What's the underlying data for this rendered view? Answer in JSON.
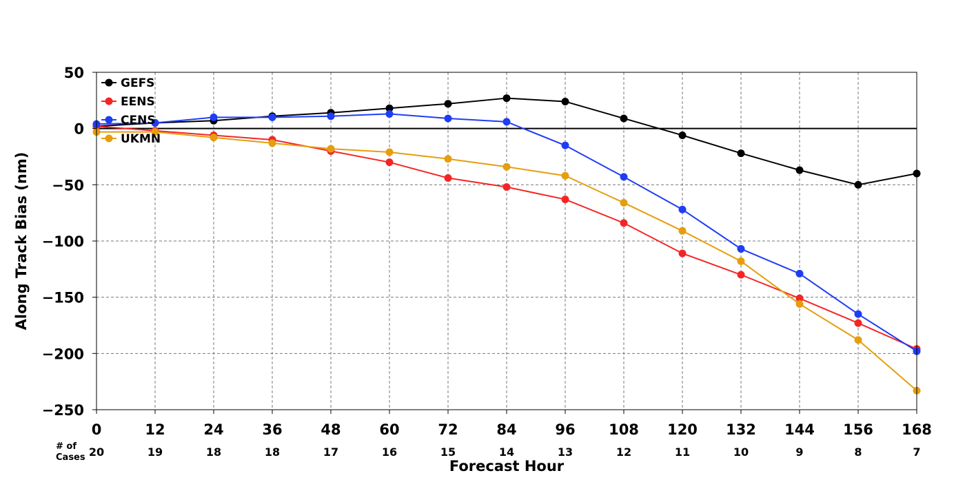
{
  "chart_data": {
    "type": "line",
    "title": "",
    "xlabel": "Forecast Hour",
    "ylabel": "Along Track Bias (nm)",
    "x": [
      0,
      12,
      24,
      36,
      48,
      60,
      72,
      84,
      96,
      108,
      120,
      132,
      144,
      156,
      168
    ],
    "xlim": [
      0,
      168
    ],
    "ylim": [
      -250,
      50
    ],
    "yticks": [
      50,
      0,
      -50,
      -100,
      -150,
      -200,
      -250
    ],
    "ytick_labels": [
      "50",
      "0",
      "−50",
      "−100",
      "−150",
      "−200",
      "−250"
    ],
    "xtick_labels": [
      "0",
      "12",
      "24",
      "36",
      "48",
      "60",
      "72",
      "84",
      "96",
      "108",
      "120",
      "132",
      "144",
      "156",
      "168"
    ],
    "grid": true,
    "zero_line": true,
    "legend_position": "top-left",
    "cases_title_line1": "# of",
    "cases_title_line2": "Cases",
    "cases": [
      "20",
      "19",
      "18",
      "18",
      "17",
      "16",
      "15",
      "14",
      "13",
      "12",
      "11",
      "10",
      "9",
      "8",
      "7"
    ],
    "series": [
      {
        "name": "GEFS",
        "color": "#000000",
        "values": [
          2,
          5,
          7,
          11,
          14,
          18,
          22,
          27,
          24,
          9,
          -6,
          -22,
          -37,
          -50,
          -40
        ]
      },
      {
        "name": "EENS",
        "color": "#f52525",
        "values": [
          2,
          -2,
          -6,
          -10,
          -20,
          -30,
          -44,
          -52,
          -63,
          -84,
          -111,
          -130,
          -151,
          -173,
          -196
        ]
      },
      {
        "name": "CENS",
        "color": "#1f3df5",
        "values": [
          4,
          5,
          10,
          10,
          11,
          13,
          9,
          6,
          -15,
          -43,
          -72,
          -107,
          -129,
          -165,
          -198
        ]
      },
      {
        "name": "UKMN",
        "color": "#e59e0d",
        "values": [
          -3,
          -3,
          -8,
          -13,
          -18,
          -21,
          -27,
          -34,
          -42,
          -66,
          -91,
          -118,
          -156,
          -188,
          -233
        ]
      }
    ]
  }
}
